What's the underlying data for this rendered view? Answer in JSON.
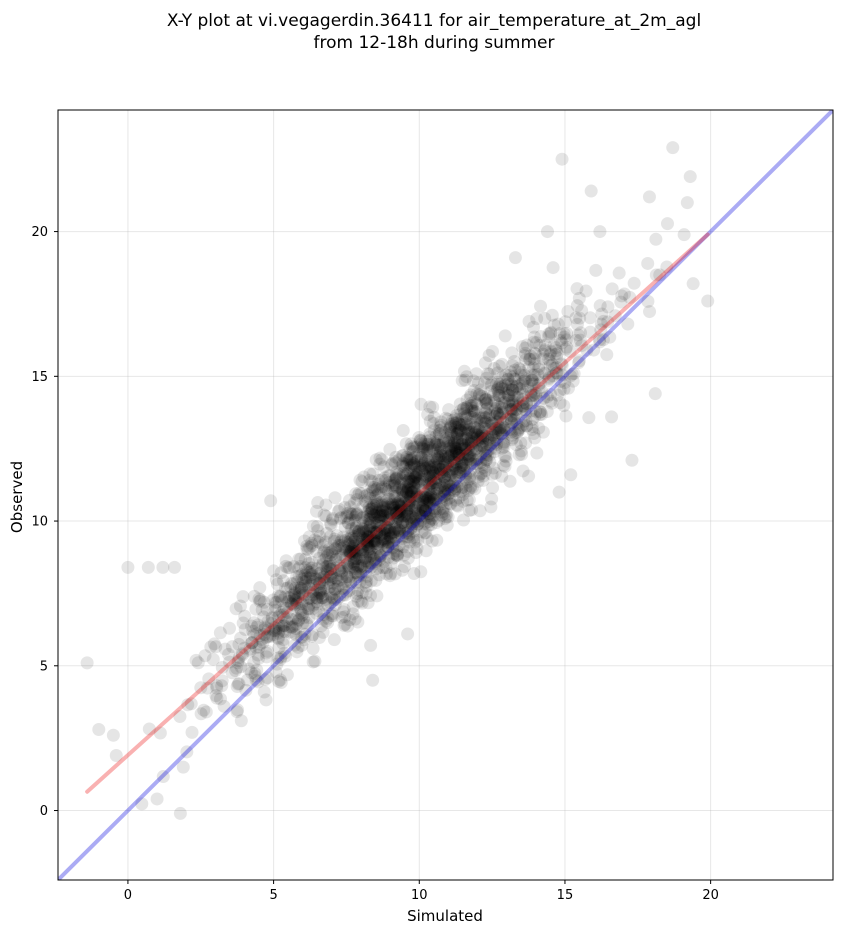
{
  "chart_data": {
    "type": "scatter",
    "title_line1": "X-Y plot at vi.vegagerdin.36411 for air_temperature_at_2m_agl",
    "title_line2": "from 12-18h during summer",
    "xlabel": "Simulated",
    "ylabel": "Observed",
    "xlim": [
      -2.4,
      24.2
    ],
    "ylim": [
      -2.4,
      24.2
    ],
    "xticks": [
      0,
      5,
      10,
      15,
      20
    ],
    "yticks": [
      0,
      5,
      10,
      15,
      20
    ],
    "grid": true,
    "point_color": "#000000",
    "point_opacity": 0.1,
    "points": {
      "seed": 12345,
      "count": 2200,
      "x_mean": 9.8,
      "x_sd": 2.9,
      "fit_slope": 0.92,
      "fit_intercept": 1.9,
      "noise_sd": 1.0,
      "outliers": [
        [
          -1.4,
          5.1
        ],
        [
          -1.0,
          2.8
        ],
        [
          -0.5,
          2.6
        ],
        [
          -0.4,
          1.9
        ],
        [
          0.0,
          8.4
        ],
        [
          0.7,
          8.4
        ],
        [
          1.0,
          0.4
        ],
        [
          1.2,
          8.4
        ],
        [
          1.6,
          8.4
        ],
        [
          1.8,
          -0.1
        ],
        [
          1.9,
          1.5
        ],
        [
          2.2,
          2.7
        ],
        [
          3.3,
          3.6
        ],
        [
          4.4,
          4.5
        ],
        [
          4.9,
          10.7
        ],
        [
          15.9,
          21.4
        ],
        [
          14.9,
          22.5
        ],
        [
          18.7,
          22.9
        ],
        [
          19.3,
          21.9
        ],
        [
          19.2,
          21.0
        ],
        [
          17.9,
          21.2
        ],
        [
          16.2,
          20.0
        ],
        [
          14.4,
          20.0
        ],
        [
          13.3,
          19.1
        ],
        [
          19.9,
          17.6
        ],
        [
          19.4,
          18.2
        ],
        [
          17.3,
          12.1
        ],
        [
          18.1,
          14.4
        ],
        [
          16.6,
          13.6
        ],
        [
          15.2,
          11.6
        ],
        [
          14.8,
          11.0
        ],
        [
          8.4,
          4.5
        ],
        [
          9.6,
          6.1
        ]
      ]
    },
    "identity_line": {
      "color": "#0000dd",
      "opacity": 0.33,
      "x": [
        -2.4,
        24.2
      ],
      "y": [
        -2.4,
        24.2
      ]
    },
    "fit_line": {
      "color": "#ee1111",
      "opacity": 0.33,
      "x": [
        -1.4,
        19.9
      ],
      "y": [
        0.65,
        19.9
      ]
    }
  }
}
